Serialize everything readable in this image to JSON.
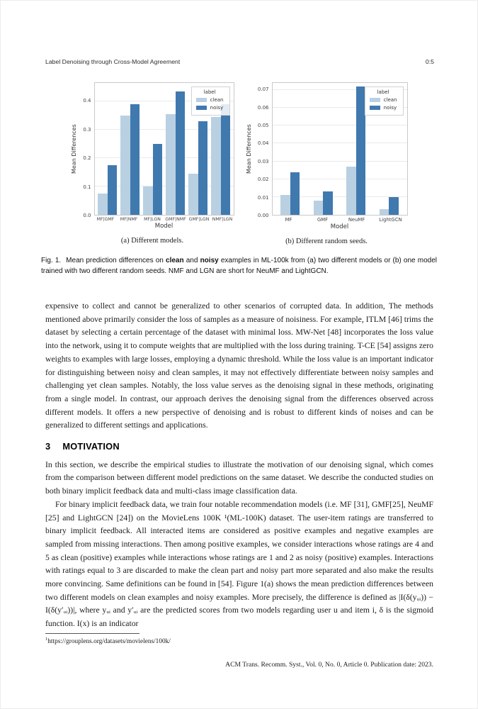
{
  "page": {
    "header": {
      "title": "Label Denoising through Cross-Model Agreement",
      "page_number": "0:5"
    },
    "footnote": {
      "marker": "1",
      "text": "https://grouplens.org/datasets/movielens/100k/"
    },
    "footer": "ACM Trans. Recomm. Syst., Vol. 0, No. 0, Article 0. Publication date: 2023."
  },
  "figure": {
    "colors": {
      "clean": "#b9d0e2",
      "noisy": "#4079ae"
    },
    "sub_a": "(a) Different models.",
    "sub_b": "(b) Different random seeds.",
    "caption": {
      "prefix": "Fig. 1.",
      "part1": "Mean prediction differences on ",
      "bold1": "clean",
      "part2": " and ",
      "bold2": "noisy",
      "part3": " examples in ML-100k from (a) two different models or (b) one model trained with two different random seeds. NMF and LGN are short for NeuMF and LightGCN."
    }
  },
  "chart_data": [
    {
      "type": "bar",
      "categories": [
        "MF|GMF",
        "MF|NMF",
        "MF|LGN",
        "GMF|NMF",
        "GMF|LGN",
        "NMF|LGN"
      ],
      "series": [
        {
          "name": "clean",
          "values": [
            0.075,
            0.35,
            0.1,
            0.355,
            0.145,
            0.345
          ]
        },
        {
          "name": "noisy",
          "values": [
            0.175,
            0.39,
            0.25,
            0.435,
            0.33,
            0.39
          ]
        }
      ],
      "title": "",
      "xlabel": "Model",
      "ylabel": "Mean Differences",
      "ylim": [
        0,
        0.465
      ],
      "yticks": [
        0.0,
        0.1,
        0.2,
        0.3,
        0.4
      ],
      "ytick_labels": [
        "0.0",
        "0.1",
        "0.2",
        "0.3",
        "0.4"
      ],
      "legend_title": "label",
      "legend_position": "upper right",
      "grid": true
    },
    {
      "type": "bar",
      "categories": [
        "MF",
        "GMF",
        "NeuMF",
        "LightGCN"
      ],
      "series": [
        {
          "name": "clean",
          "values": [
            0.011,
            0.008,
            0.027,
            0.003
          ]
        },
        {
          "name": "noisy",
          "values": [
            0.024,
            0.013,
            0.072,
            0.01
          ]
        }
      ],
      "title": "",
      "xlabel": "Model",
      "ylabel": "Mean Differences",
      "ylim": [
        0,
        0.074
      ],
      "yticks": [
        0.0,
        0.01,
        0.02,
        0.03,
        0.04,
        0.05,
        0.06,
        0.07
      ],
      "ytick_labels": [
        "0.00",
        "0.01",
        "0.02",
        "0.03",
        "0.04",
        "0.05",
        "0.06",
        "0.07"
      ],
      "legend_title": "label",
      "legend_position": "upper right",
      "grid": true
    }
  ],
  "section": {
    "number": "3",
    "title": "MOTIVATION"
  },
  "body": {
    "p1": "expensive to collect and cannot be generalized to other scenarios of corrupted data. In addition, The methods mentioned above primarily consider the loss of samples as a measure of noisiness. For example, ITLM [46] trims the dataset by selecting a certain percentage of the dataset with minimal loss. MW-Net [48] incorporates the loss value into the network, using it to compute weights that are multiplied with the loss during training. T-CE [54] assigns zero weights to examples with large losses, employing a dynamic threshold. While the loss value is an important indicator for distinguishing between noisy and clean samples, it may not effectively differentiate between noisy samples and challenging yet clean samples. Notably, the loss value serves as the denoising signal in these methods, originating from a single model. In contrast, our approach derives the denoising signal from the differences observed across different models. It offers a new perspective of denoising and is robust to different kinds of noises and can be generalized to different settings and applications.",
    "p2": "In this section, we describe the empirical studies to illustrate the motivation of our denoising signal, which comes from the comparison between different model predictions on the same dataset. We describe the conducted studies on both binary implicit feedback data and multi-class image classification data.",
    "p3": "For binary implicit feedback data, we train four notable recommendation models (i.e. MF [31], GMF[25], NeuMF [25] and LightGCN [24]) on the MovieLens 100K ¹(ML-100K) dataset. The user-item ratings are transferred to binary implicit feedback. All interacted items are considered as positive examples and negative examples are sampled from missing interactions. Then among positive examples, we consider interactions whose ratings are 4 and 5 as clean (positive) examples while interactions whose ratings are 1 and 2 as noisy (positive) examples. Interactions with ratings equal to 3 are discarded to make the clean part and noisy part more separated and also make the results more convincing. Same definitions can be found in [54]. Figure 1(a) shows the mean prediction differences between two different models on clean examples and noisy examples. More precisely, the difference is defined as |I(δ(yᵤᵢ)) − I(δ(y′ᵤᵢ))|, where yᵤᵢ and y′ᵤᵢ are the predicted scores from two models regarding user u and item i, δ is the sigmoid function. I(x) is an indicator"
  }
}
